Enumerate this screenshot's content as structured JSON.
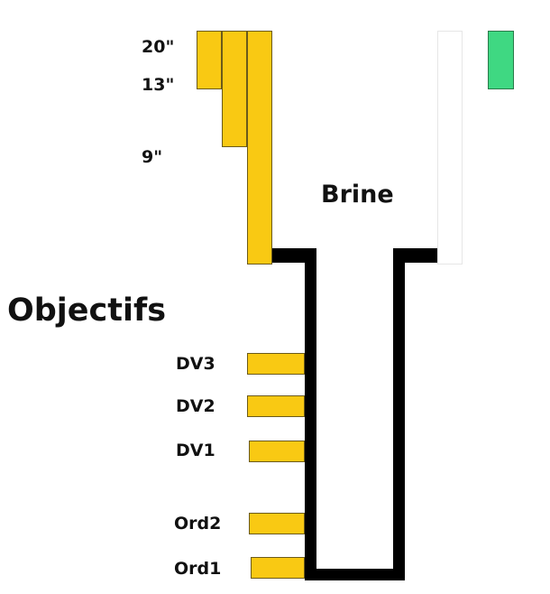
{
  "colors": {
    "bar": "#f9c913",
    "marker": "#3fd882",
    "wall": "#000000"
  },
  "depth_labels": [
    "20\"",
    "13\"",
    "9\""
  ],
  "title": "Brine",
  "section_title": "Objectifs",
  "objective_labels": [
    "DV3",
    "DV2",
    "DV1",
    "Ord2",
    "Ord1"
  ]
}
